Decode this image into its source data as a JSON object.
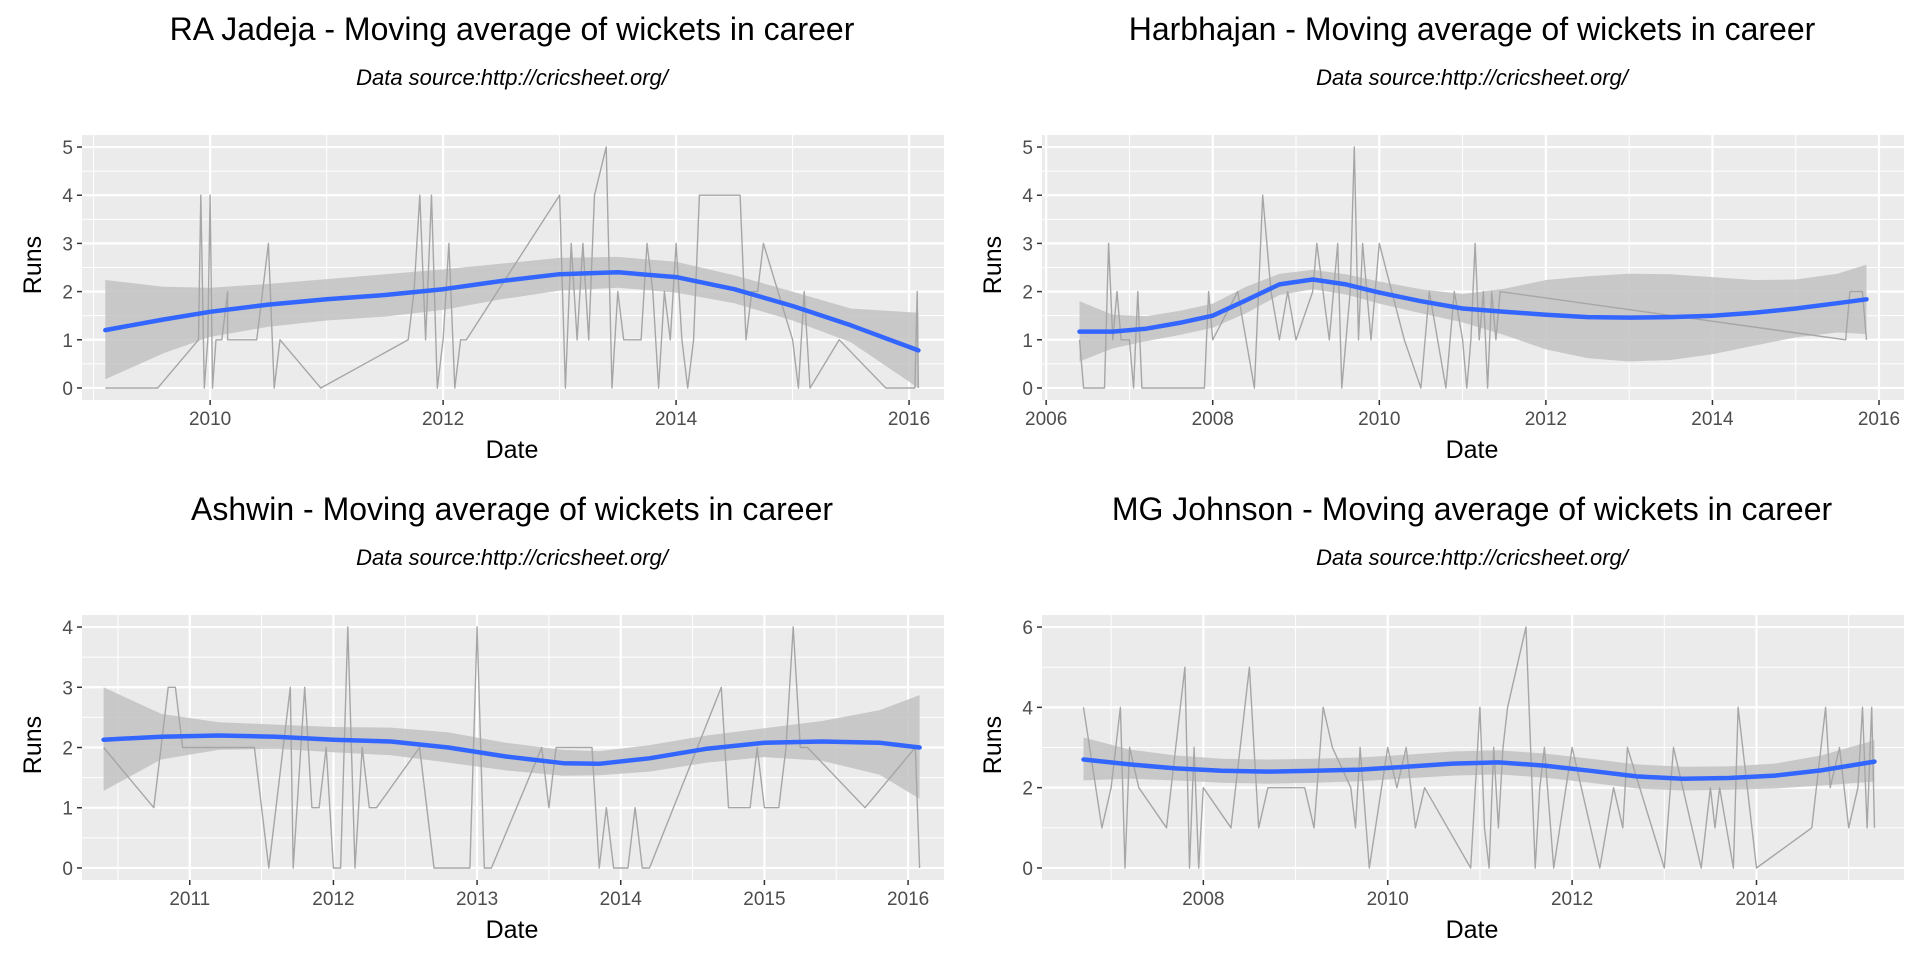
{
  "colors": {
    "panel_bg": "#EBEBEB",
    "grid": "#FFFFFF",
    "raw_line": "#A6A6A6",
    "smooth": "#3366FF",
    "ribbon": "#C2C2C2"
  },
  "chart_data": [
    {
      "type": "line",
      "title": "RA Jadeja - Moving average of wickets in career",
      "subtitle": "Data source:http://cricsheet.org/",
      "xlabel": "Date",
      "ylabel": "Runs",
      "xlim": [
        2008.9,
        2016.3
      ],
      "ylim": [
        -0.25,
        5.25
      ],
      "xticks": [
        2010,
        2012,
        2014,
        2016
      ],
      "yticks": [
        0,
        1,
        2,
        3,
        4,
        5
      ],
      "series": [
        {
          "name": "wickets",
          "x": [
            2009.1,
            2009.55,
            2009.9,
            2009.92,
            2009.95,
            2009.98,
            2010.0,
            2010.02,
            2010.05,
            2010.1,
            2010.15,
            2010.15,
            2010.4,
            2010.45,
            2010.5,
            2010.55,
            2010.6,
            2010.95,
            2011.7,
            2011.75,
            2011.8,
            2011.85,
            2011.9,
            2011.95,
            2012.0,
            2012.05,
            2012.1,
            2012.15,
            2012.2,
            2012.2,
            2013.0,
            2013.05,
            2013.1,
            2013.15,
            2013.2,
            2013.25,
            2013.3,
            2013.4,
            2013.45,
            2013.5,
            2013.55,
            2013.6,
            2013.7,
            2013.75,
            2013.8,
            2013.85,
            2013.9,
            2013.95,
            2014.0,
            2014.05,
            2014.1,
            2014.15,
            2014.2,
            2014.25,
            2014.3,
            2014.35,
            2014.4,
            2014.55,
            2014.6,
            2014.65,
            2014.7,
            2014.75,
            2015.0,
            2015.05,
            2015.1,
            2015.15,
            2015.4,
            2015.8,
            2016.05,
            2016.07,
            2016.08
          ],
          "y": [
            0,
            0,
            1,
            4,
            0,
            1,
            4,
            0,
            1,
            1,
            2,
            1,
            1,
            2,
            3,
            0,
            1,
            0,
            1,
            2,
            4,
            1,
            4,
            0,
            1,
            3,
            0,
            1,
            1,
            1,
            4,
            0,
            3,
            1,
            3,
            1,
            4,
            5,
            0,
            2,
            1,
            1,
            1,
            3,
            2,
            0,
            2,
            1,
            3,
            1,
            0,
            1,
            4,
            4,
            4,
            4,
            4,
            4,
            1,
            2,
            2,
            3,
            1,
            0,
            2,
            0,
            1,
            0,
            0,
            2,
            0
          ]
        },
        {
          "name": "smoothed",
          "x": [
            2009.1,
            2009.6,
            2010.0,
            2010.5,
            2011.0,
            2011.5,
            2012.0,
            2012.5,
            2013.0,
            2013.5,
            2014.0,
            2014.5,
            2015.0,
            2015.5,
            2016.08
          ],
          "y": [
            1.2,
            1.42,
            1.58,
            1.73,
            1.84,
            1.93,
            2.05,
            2.22,
            2.36,
            2.4,
            2.3,
            2.05,
            1.7,
            1.3,
            0.78
          ],
          "lower": [
            0.18,
            0.72,
            1.06,
            1.27,
            1.4,
            1.48,
            1.62,
            1.84,
            2.02,
            2.08,
            1.98,
            1.76,
            1.4,
            0.95,
            0.0
          ],
          "upper": [
            2.24,
            2.1,
            2.08,
            2.16,
            2.26,
            2.36,
            2.46,
            2.58,
            2.7,
            2.72,
            2.62,
            2.34,
            2.0,
            1.65,
            1.56
          ]
        }
      ]
    },
    {
      "type": "line",
      "title": "Harbhajan - Moving average of wickets in career",
      "subtitle": "Data source:http://cricsheet.org/",
      "xlabel": "Date",
      "ylabel": "Runs",
      "xlim": [
        2005.95,
        2016.3
      ],
      "ylim": [
        -0.25,
        5.25
      ],
      "xticks": [
        2006,
        2008,
        2010,
        2012,
        2014,
        2016
      ],
      "yticks": [
        0,
        1,
        2,
        3,
        4,
        5
      ],
      "series": [
        {
          "name": "wickets",
          "x": [
            2006.4,
            2006.45,
            2006.6,
            2006.7,
            2006.75,
            2006.8,
            2006.85,
            2006.9,
            2007.0,
            2007.05,
            2007.1,
            2007.15,
            2007.2,
            2007.9,
            2007.95,
            2008.0,
            2008.3,
            2008.5,
            2008.6,
            2008.7,
            2008.8,
            2008.9,
            2009.0,
            2009.2,
            2009.25,
            2009.4,
            2009.5,
            2009.55,
            2009.65,
            2009.7,
            2009.75,
            2009.8,
            2009.9,
            2010.0,
            2010.3,
            2010.5,
            2010.6,
            2010.7,
            2010.8,
            2010.9,
            2011.0,
            2011.05,
            2011.1,
            2011.15,
            2011.2,
            2011.25,
            2011.3,
            2011.35,
            2011.4,
            2011.45,
            2015.6,
            2015.65,
            2015.7,
            2015.8,
            2015.85
          ],
          "y": [
            1,
            0,
            0,
            0,
            3,
            1,
            2,
            1,
            1,
            0,
            2,
            0,
            0,
            0,
            2,
            1,
            2,
            0,
            4,
            2,
            1,
            2,
            1,
            2,
            3,
            1,
            3,
            0,
            2,
            5,
            1,
            3,
            1,
            3,
            1,
            0,
            2,
            1,
            0,
            2,
            1,
            0,
            1,
            3,
            1,
            2,
            0,
            2,
            1,
            2,
            1,
            2,
            2,
            2,
            1
          ]
        },
        {
          "name": "smoothed",
          "x": [
            2006.4,
            2006.8,
            2007.2,
            2007.6,
            2008.0,
            2008.4,
            2008.8,
            2009.2,
            2009.6,
            2010.0,
            2010.5,
            2011.0,
            2011.5,
            2012.0,
            2012.5,
            2013.0,
            2013.5,
            2014.0,
            2014.5,
            2015.0,
            2015.5,
            2015.85
          ],
          "y": [
            1.17,
            1.17,
            1.23,
            1.35,
            1.5,
            1.82,
            2.15,
            2.25,
            2.15,
            1.98,
            1.8,
            1.65,
            1.58,
            1.52,
            1.47,
            1.46,
            1.47,
            1.5,
            1.56,
            1.65,
            1.76,
            1.84
          ],
          "lower": [
            0.55,
            0.82,
            0.97,
            1.1,
            1.25,
            1.55,
            1.93,
            2.05,
            1.94,
            1.75,
            1.55,
            1.36,
            1.1,
            0.8,
            0.62,
            0.55,
            0.58,
            0.7,
            0.88,
            1.05,
            1.15,
            1.12
          ],
          "upper": [
            1.8,
            1.52,
            1.49,
            1.6,
            1.75,
            2.1,
            2.37,
            2.45,
            2.36,
            2.21,
            2.05,
            1.95,
            2.06,
            2.24,
            2.32,
            2.37,
            2.36,
            2.3,
            2.24,
            2.25,
            2.37,
            2.56
          ]
        }
      ]
    },
    {
      "type": "line",
      "title": "Ashwin - Moving average of wickets in career",
      "subtitle": "Data source:http://cricsheet.org/",
      "xlabel": "Date",
      "ylabel": "Runs",
      "xlim": [
        2010.25,
        2016.25
      ],
      "ylim": [
        -0.2,
        4.2
      ],
      "xticks": [
        2011,
        2012,
        2013,
        2014,
        2015,
        2016
      ],
      "yticks": [
        0,
        1,
        2,
        3,
        4
      ],
      "series": [
        {
          "name": "wickets",
          "x": [
            2010.4,
            2010.75,
            2010.85,
            2010.9,
            2010.95,
            2011.2,
            2011.45,
            2011.55,
            2011.7,
            2011.72,
            2011.8,
            2011.85,
            2011.9,
            2011.95,
            2012.0,
            2012.05,
            2012.1,
            2012.15,
            2012.2,
            2012.25,
            2012.3,
            2012.6,
            2012.7,
            2012.95,
            2013.0,
            2013.05,
            2013.1,
            2013.45,
            2013.5,
            2013.55,
            2013.8,
            2013.85,
            2013.9,
            2013.95,
            2014.05,
            2014.1,
            2014.15,
            2014.2,
            2014.7,
            2014.75,
            2014.9,
            2014.95,
            2015.0,
            2015.1,
            2015.15,
            2015.2,
            2015.25,
            2015.3,
            2015.7,
            2016.05,
            2016.08
          ],
          "y": [
            2,
            1,
            3,
            3,
            2,
            2,
            2,
            0,
            3,
            0,
            3,
            1,
            1,
            2,
            0,
            0,
            4,
            0,
            2,
            1,
            1,
            2,
            0,
            0,
            4,
            0,
            0,
            2,
            1,
            2,
            2,
            0,
            1,
            0,
            0,
            1,
            0,
            0,
            3,
            1,
            1,
            2,
            1,
            1,
            2,
            4,
            2,
            2,
            1,
            2,
            0
          ]
        },
        {
          "name": "smoothed",
          "x": [
            2010.4,
            2010.8,
            2011.2,
            2011.6,
            2012.0,
            2012.4,
            2012.8,
            2013.2,
            2013.6,
            2013.85,
            2014.2,
            2014.6,
            2015.0,
            2015.4,
            2015.8,
            2016.08
          ],
          "y": [
            2.13,
            2.18,
            2.2,
            2.18,
            2.13,
            2.1,
            2.0,
            1.85,
            1.74,
            1.73,
            1.82,
            1.98,
            2.08,
            2.1,
            2.08,
            2.0
          ],
          "lower": [
            1.28,
            1.8,
            1.96,
            1.98,
            1.92,
            1.87,
            1.75,
            1.62,
            1.53,
            1.54,
            1.6,
            1.75,
            1.84,
            1.78,
            1.55,
            1.15
          ],
          "upper": [
            3.0,
            2.56,
            2.42,
            2.38,
            2.34,
            2.33,
            2.25,
            2.08,
            1.96,
            1.94,
            2.04,
            2.2,
            2.32,
            2.44,
            2.62,
            2.87
          ]
        }
      ]
    },
    {
      "type": "line",
      "title": "MG Johnson - Moving average of wickets in career",
      "subtitle": "Data source:http://cricsheet.org/",
      "xlabel": "Date",
      "ylabel": "Runs",
      "xlim": [
        2006.25,
        2015.6
      ],
      "ylim": [
        -0.3,
        6.3
      ],
      "xticks": [
        2008,
        2010,
        2012,
        2014
      ],
      "yticks": [
        0,
        2,
        4,
        6
      ],
      "series": [
        {
          "name": "wickets",
          "x": [
            2006.7,
            2006.9,
            2007.0,
            2007.1,
            2007.15,
            2007.2,
            2007.3,
            2007.6,
            2007.8,
            2007.85,
            2007.9,
            2007.95,
            2008.0,
            2008.3,
            2008.5,
            2008.55,
            2008.6,
            2008.7,
            2009.1,
            2009.2,
            2009.3,
            2009.4,
            2009.6,
            2009.65,
            2009.7,
            2009.8,
            2010.0,
            2010.1,
            2010.2,
            2010.3,
            2010.4,
            2010.9,
            2011.0,
            2011.05,
            2011.1,
            2011.15,
            2011.2,
            2011.25,
            2011.3,
            2011.5,
            2011.6,
            2011.65,
            2011.7,
            2011.8,
            2012.0,
            2012.3,
            2012.45,
            2012.55,
            2012.6,
            2013.0,
            2013.1,
            2013.4,
            2013.5,
            2013.55,
            2013.6,
            2013.75,
            2013.8,
            2014.0,
            2014.6,
            2014.75,
            2014.8,
            2014.9,
            2015.0,
            2015.1,
            2015.15,
            2015.2,
            2015.25,
            2015.28
          ],
          "y": [
            4,
            1,
            2,
            4,
            0,
            3,
            2,
            1,
            5,
            0,
            3,
            0,
            2,
            1,
            5,
            3,
            1,
            2,
            2,
            1,
            4,
            3,
            2,
            1,
            3,
            0,
            3,
            2,
            3,
            1,
            2,
            0,
            4,
            1,
            0,
            3,
            1,
            3,
            4,
            6,
            0,
            2,
            3,
            0,
            3,
            0,
            2,
            1,
            3,
            0,
            3,
            0,
            2,
            1,
            2,
            0,
            4,
            0,
            1,
            4,
            2,
            3,
            1,
            2,
            4,
            1,
            4,
            1
          ]
        },
        {
          "name": "smoothed",
          "x": [
            2006.7,
            2007.2,
            2007.7,
            2008.2,
            2008.7,
            2009.2,
            2009.7,
            2010.2,
            2010.7,
            2011.2,
            2011.7,
            2012.2,
            2012.7,
            2013.2,
            2013.7,
            2014.2,
            2014.7,
            2015.28
          ],
          "y": [
            2.7,
            2.58,
            2.48,
            2.42,
            2.4,
            2.42,
            2.45,
            2.52,
            2.6,
            2.63,
            2.55,
            2.42,
            2.28,
            2.22,
            2.24,
            2.3,
            2.43,
            2.65
          ],
          "lower": [
            2.18,
            2.22,
            2.18,
            2.12,
            2.1,
            2.12,
            2.16,
            2.23,
            2.3,
            2.33,
            2.25,
            2.12,
            1.98,
            1.93,
            1.95,
            1.98,
            2.05,
            2.15
          ],
          "upper": [
            3.25,
            2.95,
            2.8,
            2.72,
            2.7,
            2.72,
            2.75,
            2.82,
            2.9,
            2.93,
            2.85,
            2.72,
            2.58,
            2.52,
            2.53,
            2.6,
            2.8,
            3.18
          ]
        }
      ]
    }
  ]
}
